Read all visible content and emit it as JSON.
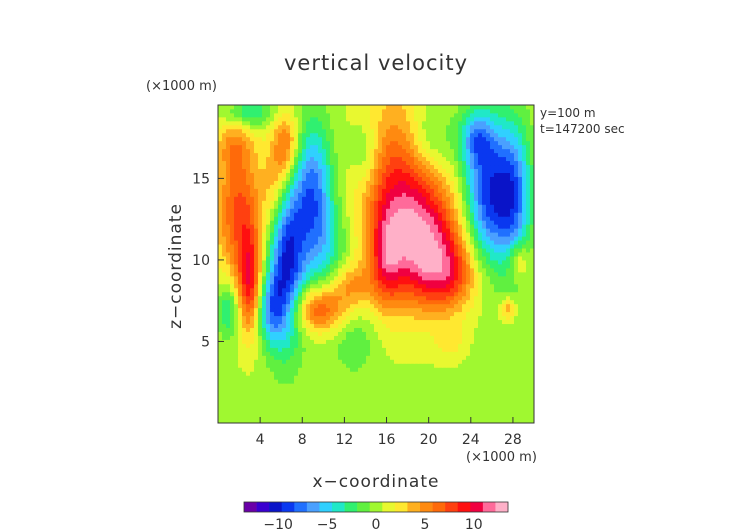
{
  "chart_data": {
    "type": "heatmap",
    "title": "vertical velocity",
    "xlabel": "x−coordinate",
    "ylabel": "z−coordinate",
    "x_unit": "(×1000 m)",
    "y_unit": "(×1000 m)",
    "info": [
      "y=100 m",
      "t=147200 sec"
    ],
    "xlim": [
      0,
      30
    ],
    "ylim": [
      0,
      19.5
    ],
    "x_ticks": [
      4,
      8,
      12,
      16,
      20,
      24,
      28
    ],
    "y_ticks": [
      5,
      10,
      15
    ],
    "colorbar": {
      "range": [
        -13.5,
        13.5
      ],
      "tick_values": [
        -10,
        -5,
        0,
        5,
        10
      ],
      "tick_labels": [
        "−10",
        "−5",
        "0",
        "5",
        "10"
      ],
      "colors": [
        "#6a00a8",
        "#3a00d0",
        "#0a14c8",
        "#0a38f0",
        "#2070ff",
        "#4aa0ff",
        "#30d0ff",
        "#20e8c8",
        "#30f070",
        "#60f040",
        "#a0f830",
        "#e8f830",
        "#ffe830",
        "#ffb020",
        "#ff8a10",
        "#ff6a0a",
        "#ff4010",
        "#ff1010",
        "#f00040",
        "#ff6a9a",
        "#ffb0c8"
      ]
    },
    "grid": false,
    "background_value": 0.3,
    "features": [
      {
        "x": 2.0,
        "z": 13.0,
        "value": 7,
        "sx": 1.6,
        "sz": 3.0
      },
      {
        "x": 3.0,
        "z": 8.5,
        "value": 8,
        "sx": 0.8,
        "sz": 2.2
      },
      {
        "x": 1.5,
        "z": 17.0,
        "value": 3,
        "sx": 1.2,
        "sz": 1.0
      },
      {
        "x": 6.5,
        "z": 17.0,
        "value": 6,
        "sx": 0.9,
        "sz": 1.5
      },
      {
        "x": 5.5,
        "z": 14.5,
        "value": 4,
        "sx": 0.9,
        "sz": 2.0
      },
      {
        "x": 6.5,
        "z": 10.0,
        "value": -10,
        "sx": 1.2,
        "sz": 3.5
      },
      {
        "x": 9.0,
        "z": 14.0,
        "value": -8,
        "sx": 1.3,
        "sz": 3.0
      },
      {
        "x": 5.0,
        "z": 7.0,
        "value": -6,
        "sx": 1.0,
        "sz": 1.5
      },
      {
        "x": 10.5,
        "z": 10.5,
        "value": -3,
        "sx": 1.5,
        "sz": 2.0
      },
      {
        "x": 9.5,
        "z": 7.0,
        "value": 7,
        "sx": 1.8,
        "sz": 1.0
      },
      {
        "x": 12.5,
        "z": 8.5,
        "value": 4,
        "sx": 1.5,
        "sz": 1.0
      },
      {
        "x": 17.0,
        "z": 14.0,
        "value": 8,
        "sx": 2.5,
        "sz": 4.0
      },
      {
        "x": 20.0,
        "z": 11.0,
        "value": 9,
        "sx": 2.5,
        "sz": 2.5
      },
      {
        "x": 22.0,
        "z": 9.0,
        "value": 5,
        "sx": 2.0,
        "sz": 1.5
      },
      {
        "x": 16.0,
        "z": 10.0,
        "value": 5,
        "sx": 1.0,
        "sz": 2.0
      },
      {
        "x": 25.5,
        "z": 14.0,
        "value": -9,
        "sx": 1.5,
        "sz": 3.0
      },
      {
        "x": 28.0,
        "z": 14.0,
        "value": -8,
        "sx": 1.2,
        "sz": 3.0
      },
      {
        "x": 24.5,
        "z": 17.5,
        "value": -5,
        "sx": 1.2,
        "sz": 1.2
      },
      {
        "x": 14.0,
        "z": 16.5,
        "value": -3,
        "sx": 1.0,
        "sz": 1.5
      },
      {
        "x": 1.0,
        "z": 7.0,
        "value": -4,
        "sx": 0.8,
        "sz": 1.2
      },
      {
        "x": 3.0,
        "z": 19.0,
        "value": -4,
        "sx": 1.5,
        "sz": 0.6
      },
      {
        "x": 20.0,
        "z": 17.5,
        "value": -3,
        "sx": 1.5,
        "sz": 1.5
      },
      {
        "x": 13.0,
        "z": 5.0,
        "value": -2,
        "sx": 1.5,
        "sz": 1.5
      },
      {
        "x": 22.0,
        "z": 5.0,
        "value": 2,
        "sx": 1.0,
        "sz": 0.8
      },
      {
        "x": 28.5,
        "z": 10.0,
        "value": 4,
        "sx": 0.7,
        "sz": 0.8
      },
      {
        "x": 27.5,
        "z": 7.0,
        "value": 4,
        "sx": 0.5,
        "sz": 0.5
      }
    ]
  }
}
